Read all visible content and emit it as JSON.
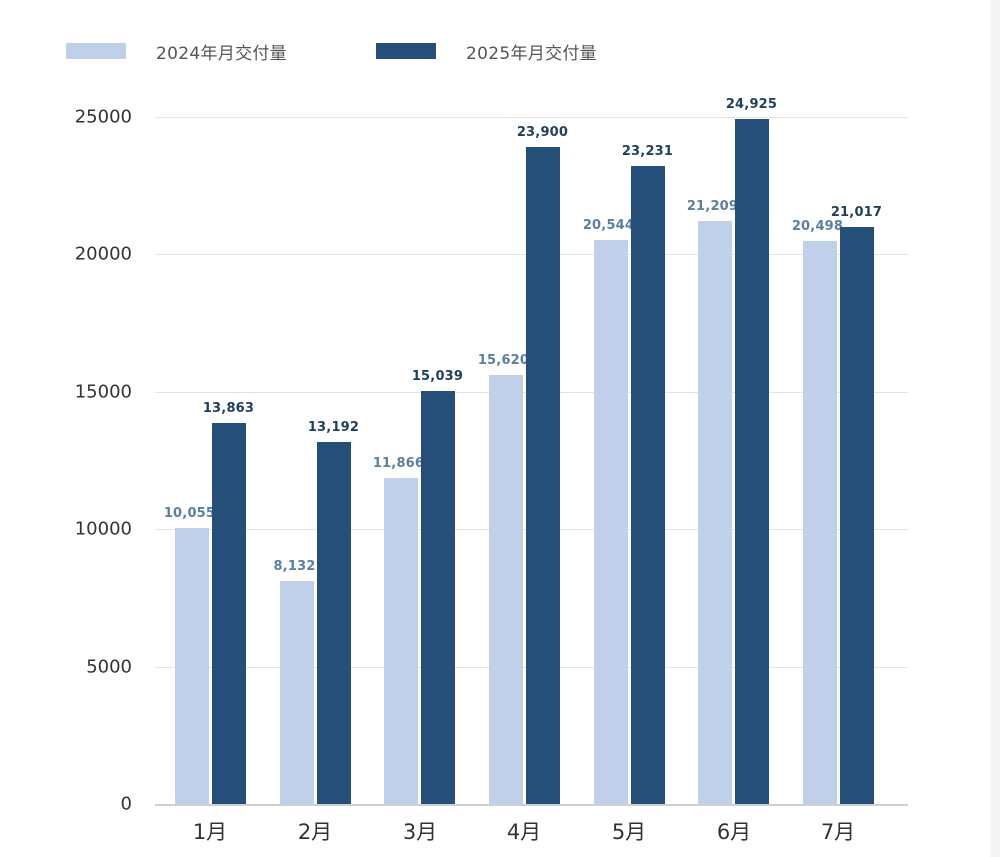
{
  "legend": {
    "series_2024_label": "2024年月交付量",
    "series_2025_label": "2025年月交付量"
  },
  "y_axis": {
    "ticks": [
      "25000",
      "20000",
      "15000",
      "10000",
      "5000",
      "0"
    ]
  },
  "x_axis": {
    "ticks": [
      "1月",
      "2月",
      "3月",
      "4月",
      "5月",
      "6月",
      "7月"
    ]
  },
  "labels": {
    "s2024": [
      "10,055",
      "8,132",
      "11,866",
      "15,620",
      "20,544",
      "21,209",
      "20,498"
    ],
    "s2025": [
      "13,863",
      "13,192",
      "15,039",
      "23,900",
      "23,231",
      "24,925",
      "21,017"
    ]
  },
  "colors": {
    "series_2024": "#bfd0e8",
    "series_2025": "#254f78",
    "label_2024": "#5b7f9f",
    "label_2025": "#1f3f5f"
  },
  "chart_data": {
    "type": "bar",
    "title": "",
    "xlabel": "",
    "ylabel": "",
    "categories": [
      "1月",
      "2月",
      "3月",
      "4月",
      "5月",
      "6月",
      "7月"
    ],
    "series": [
      {
        "name": "2024年月交付量",
        "color": "#bfd0e8",
        "values": [
          10055,
          8132,
          11866,
          15620,
          20544,
          21209,
          20498
        ]
      },
      {
        "name": "2025年月交付量",
        "color": "#254f78",
        "values": [
          13863,
          13192,
          15039,
          23900,
          23231,
          24925,
          21017
        ]
      }
    ],
    "ylim": [
      0,
      25000
    ],
    "yticks": [
      0,
      5000,
      10000,
      15000,
      20000,
      25000
    ],
    "grid": true,
    "legend_position": "top-left",
    "data_labels": true
  }
}
